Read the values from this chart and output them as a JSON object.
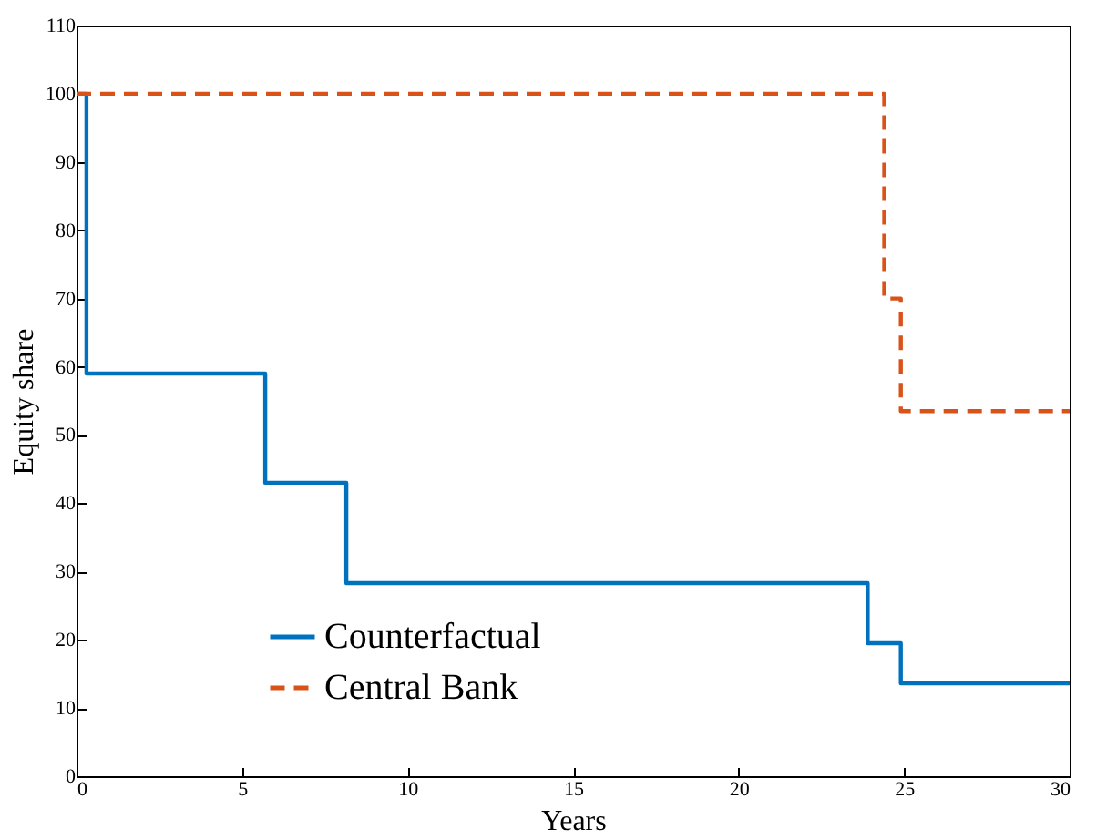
{
  "chart_data": {
    "type": "step",
    "xlabel": "Years",
    "ylabel": "Equity share",
    "xlim": [
      0,
      30
    ],
    "xticks": [
      0,
      5,
      10,
      15,
      20,
      25,
      30
    ],
    "ylim": [
      0,
      110
    ],
    "yticks": [
      0,
      10,
      20,
      30,
      40,
      50,
      60,
      70,
      80,
      90,
      100,
      110
    ],
    "grid": false,
    "legend": "bottom left",
    "series": [
      {
        "name": "Counterfactual",
        "color": "#0072bd",
        "line_style": "solid",
        "x": [
          0,
          0.3,
          5.7,
          8.15,
          23.9,
          24.9,
          30
        ],
        "values": [
          100,
          59,
          43,
          28.3,
          19.5,
          13.6,
          13.6
        ]
      },
      {
        "name": "Central Bank",
        "color": "#d95319",
        "line_style": "dashed",
        "x": [
          0,
          24.4,
          24.9,
          30
        ],
        "values": [
          100,
          70,
          53.5,
          53.5
        ]
      }
    ]
  }
}
